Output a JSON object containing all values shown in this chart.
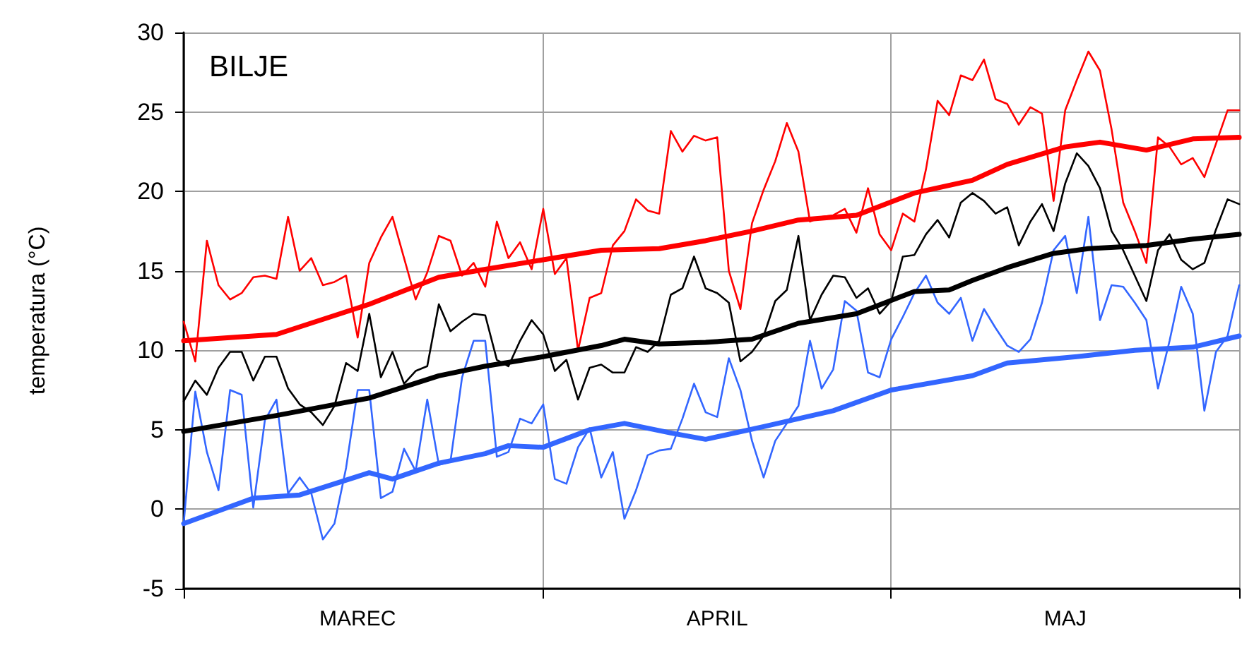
{
  "chart_data": {
    "type": "line",
    "title": "BILJE",
    "ylabel": "temperatura (°C)",
    "x": [
      "--03-01",
      "--03-02",
      "--03-03",
      "--03-04",
      "--03-05",
      "--03-06",
      "--03-07",
      "--03-08",
      "--03-09",
      "--03-10",
      "--03-11",
      "--03-12",
      "--03-13",
      "--03-14",
      "--03-15",
      "--03-16",
      "--03-17",
      "--03-18",
      "--03-19",
      "--03-20",
      "--03-21",
      "--03-22",
      "--03-23",
      "--03-24",
      "--03-25",
      "--03-26",
      "--03-27",
      "--03-28",
      "--03-29",
      "--03-30",
      "--03-31",
      "--04-01",
      "--04-02",
      "--04-03",
      "--04-04",
      "--04-05",
      "--04-06",
      "--04-07",
      "--04-08",
      "--04-09",
      "--04-10",
      "--04-11",
      "--04-12",
      "--04-13",
      "--04-14",
      "--04-15",
      "--04-16",
      "--04-17",
      "--04-18",
      "--04-19",
      "--04-20",
      "--04-21",
      "--04-22",
      "--04-23",
      "--04-24",
      "--04-25",
      "--04-26",
      "--04-27",
      "--04-28",
      "--04-29",
      "--04-30",
      "--05-01",
      "--05-02",
      "--05-03",
      "--05-04",
      "--05-05",
      "--05-06",
      "--05-07",
      "--05-08",
      "--05-09",
      "--05-10",
      "--05-11",
      "--05-12",
      "--05-13",
      "--05-14",
      "--05-15",
      "--05-16",
      "--05-17",
      "--05-18",
      "--05-19",
      "--05-20",
      "--05-21",
      "--05-22",
      "--05-23",
      "--05-24",
      "--05-25",
      "--05-26",
      "--05-27",
      "--05-28",
      "--05-29",
      "--05-30",
      "--05-31"
    ],
    "series": [
      {
        "color": "#ff0000",
        "values": [
          11.8,
          9.3,
          16.9,
          14.1,
          13.2,
          13.6,
          14.6,
          14.7,
          14.5,
          18.4,
          15.0,
          15.8,
          14.1,
          14.3,
          14.7,
          10.8,
          15.5,
          17.1,
          18.4,
          15.8,
          13.2,
          14.9,
          17.2,
          16.9,
          14.7,
          15.5,
          14.0,
          18.1,
          15.8,
          16.8,
          15.1,
          18.9,
          14.8,
          15.8,
          10.0,
          13.3,
          13.6,
          16.6,
          17.5,
          19.5,
          18.8,
          18.6,
          23.8,
          22.5,
          23.5,
          23.2,
          23.4,
          15.0,
          12.6,
          18.0,
          20.1,
          21.9,
          24.3,
          22.5,
          18.1,
          18.4,
          18.5,
          18.9,
          17.4,
          20.2,
          17.3,
          16.3,
          18.6,
          18.1,
          21.4,
          25.7,
          24.8,
          27.3,
          27.0,
          28.3,
          25.8,
          25.5,
          24.2,
          25.3,
          24.9,
          19.4,
          25.1,
          27.0,
          28.8,
          27.6,
          23.9,
          19.3,
          17.5,
          15.5,
          23.4,
          22.8,
          21.7,
          22.1,
          20.9,
          23.0,
          25.1,
          25.1
        ]
      },
      {
        "color": "#000000",
        "values": [
          6.8,
          8.1,
          7.2,
          8.9,
          9.9,
          9.9,
          8.1,
          9.6,
          9.6,
          7.6,
          6.6,
          6.1,
          5.3,
          6.5,
          9.2,
          8.7,
          12.3,
          8.3,
          9.9,
          7.9,
          8.7,
          9.0,
          12.9,
          11.2,
          11.8,
          12.3,
          12.2,
          9.4,
          9.0,
          10.6,
          11.9,
          11.0,
          8.7,
          9.4,
          6.9,
          8.9,
          9.1,
          8.6,
          8.6,
          10.2,
          9.9,
          10.6,
          13.5,
          13.9,
          15.9,
          13.9,
          13.6,
          13.0,
          9.3,
          9.9,
          10.9,
          13.1,
          13.8,
          17.2,
          11.9,
          13.5,
          14.7,
          14.6,
          13.3,
          13.9,
          12.3,
          13.1,
          15.9,
          16.0,
          17.3,
          18.2,
          17.1,
          19.3,
          19.9,
          19.4,
          18.6,
          19.0,
          16.6,
          18.1,
          19.2,
          17.5,
          20.5,
          22.4,
          21.6,
          20.2,
          17.5,
          16.3,
          14.7,
          13.1,
          16.3,
          17.3,
          15.7,
          15.1,
          15.5,
          17.6,
          19.5,
          19.2
        ]
      },
      {
        "color": "#3366ff",
        "values": [
          -0.9,
          7.4,
          3.6,
          1.2,
          7.5,
          7.2,
          0.1,
          5.6,
          6.9,
          1.0,
          2.0,
          1.0,
          -1.9,
          -0.9,
          2.6,
          7.5,
          7.5,
          0.7,
          1.1,
          3.8,
          2.4,
          6.9,
          2.8,
          3.0,
          8.3,
          10.6,
          10.6,
          3.3,
          3.6,
          5.7,
          5.4,
          6.6,
          1.9,
          1.6,
          3.9,
          5.1,
          2.0,
          3.6,
          -0.6,
          1.2,
          3.4,
          3.7,
          3.8,
          5.7,
          7.9,
          6.1,
          5.8,
          9.5,
          7.5,
          4.3,
          2.0,
          4.3,
          5.4,
          6.5,
          10.6,
          7.6,
          8.8,
          13.1,
          12.5,
          8.6,
          8.3,
          10.7,
          12.1,
          13.6,
          14.7,
          13.0,
          12.3,
          13.3,
          10.6,
          12.6,
          11.4,
          10.3,
          9.9,
          10.7,
          13.0,
          16.3,
          17.2,
          13.6,
          18.4,
          11.9,
          14.1,
          14.0,
          13.0,
          11.9,
          7.6,
          10.6,
          14.0,
          12.3,
          6.2,
          9.9,
          10.9,
          14.1
        ]
      },
      {
        "color": "#ff0000",
        "x": [
          "--03-01",
          "--03-09",
          "--03-17",
          "--03-23",
          "--03-27",
          "--04-01",
          "--04-06",
          "--04-11",
          "--04-15",
          "--04-19",
          "--04-23",
          "--04-28",
          "--05-03",
          "--05-08",
          "--05-11",
          "--05-16",
          "--05-19",
          "--05-23",
          "--05-27",
          "--05-31"
        ],
        "values": [
          10.6,
          11.0,
          12.9,
          14.6,
          15.1,
          15.7,
          16.3,
          16.4,
          16.9,
          17.5,
          18.2,
          18.5,
          19.9,
          20.7,
          21.7,
          22.8,
          23.1,
          22.6,
          23.3,
          23.4
        ]
      },
      {
        "color": "#000000",
        "x": [
          "--03-01",
          "--03-09",
          "--03-17",
          "--03-23",
          "--03-27",
          "--04-01",
          "--04-06",
          "--04-08",
          "--04-11",
          "--04-15",
          "--04-19",
          "--04-23",
          "--04-28",
          "--05-03",
          "--05-06",
          "--05-08",
          "--05-11",
          "--05-15",
          "--05-18",
          "--05-23",
          "--05-27",
          "--05-31"
        ],
        "values": [
          4.9,
          5.9,
          7.0,
          8.4,
          9.0,
          9.6,
          10.3,
          10.7,
          10.4,
          10.5,
          10.7,
          11.7,
          12.3,
          13.7,
          13.8,
          14.4,
          15.2,
          16.1,
          16.4,
          16.6,
          17.0,
          17.3
        ]
      },
      {
        "color": "#3366ff",
        "x": [
          "--03-01",
          "--03-07",
          "--03-11",
          "--03-17",
          "--03-19",
          "--03-23",
          "--03-27",
          "--03-29",
          "--04-01",
          "--04-05",
          "--04-08",
          "--04-12",
          "--04-15",
          "--04-20",
          "--04-26",
          "--05-01",
          "--05-08",
          "--05-11",
          "--05-17",
          "--05-22",
          "--05-27",
          "--05-31"
        ],
        "values": [
          -0.9,
          0.7,
          0.9,
          2.3,
          1.9,
          2.9,
          3.5,
          4.0,
          3.9,
          5.0,
          5.4,
          4.8,
          4.4,
          5.2,
          6.2,
          7.5,
          8.4,
          9.2,
          9.6,
          10.0,
          10.2,
          10.9
        ]
      }
    ],
    "xlim": [
      "--03-01",
      "--05-31"
    ],
    "xticks": [
      {
        "value": "--03-01",
        "label": null
      },
      {
        "value": "--03-16",
        "label": "MAREC"
      },
      {
        "value": "--04-01",
        "label": null
      },
      {
        "value": "--04-16",
        "label": "APRIL"
      },
      {
        "value": "--05-01",
        "label": null
      },
      {
        "value": "--05-16",
        "label": "MAJ"
      },
      {
        "value": "--05-31",
        "label": null
      }
    ],
    "ylim": [
      -5,
      30
    ],
    "yticks": [
      -5,
      0,
      5,
      10,
      15,
      20,
      25,
      30
    ],
    "grid": true,
    "marker": "none",
    "line_style": "solid"
  }
}
